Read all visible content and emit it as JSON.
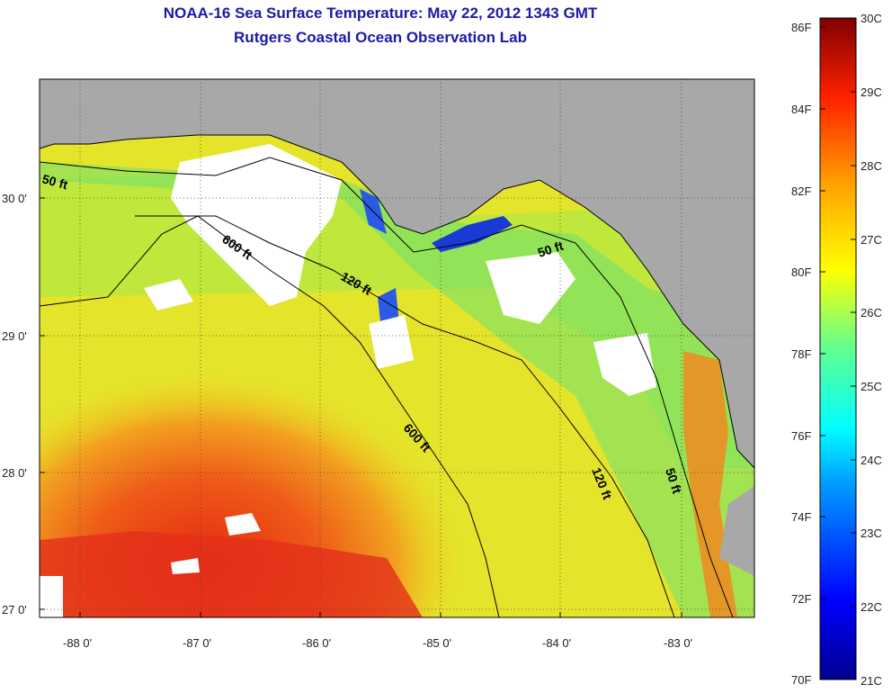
{
  "title": {
    "line1": "NOAA-16 Sea Surface Temperature:  May 22, 2012 1343 GMT",
    "line2": "Rutgers Coastal Ocean Observation Lab"
  },
  "axes": {
    "x_ticks": [
      "-88 0'",
      "-87 0'",
      "-86 0'",
      "-85 0'",
      "-84 0'",
      "-83 0'"
    ],
    "y_ticks": [
      "30 0'",
      "29 0'",
      "28 0'",
      "27 0'"
    ]
  },
  "contours": {
    "labels": [
      "50 ft",
      "600 ft",
      "120 ft",
      "50 ft",
      "600 ft",
      "120 ft",
      "50 ft"
    ]
  },
  "colorbar": {
    "fahrenheit": [
      "86F",
      "84F",
      "82F",
      "80F",
      "78F",
      "76F",
      "74F",
      "72F",
      "70F"
    ],
    "celsius": [
      "30C",
      "29C",
      "28C",
      "27C",
      "26C",
      "25C",
      "24C",
      "23C",
      "22C",
      "21C"
    ]
  },
  "colors": {
    "title": "#1a1aa6",
    "land": "#a8a8a8",
    "cloud": "#ffffff",
    "warm": "#e8401a",
    "mid": "#e8e81a",
    "cool": "#2ad6a0",
    "cold": "#1a3ad6"
  }
}
